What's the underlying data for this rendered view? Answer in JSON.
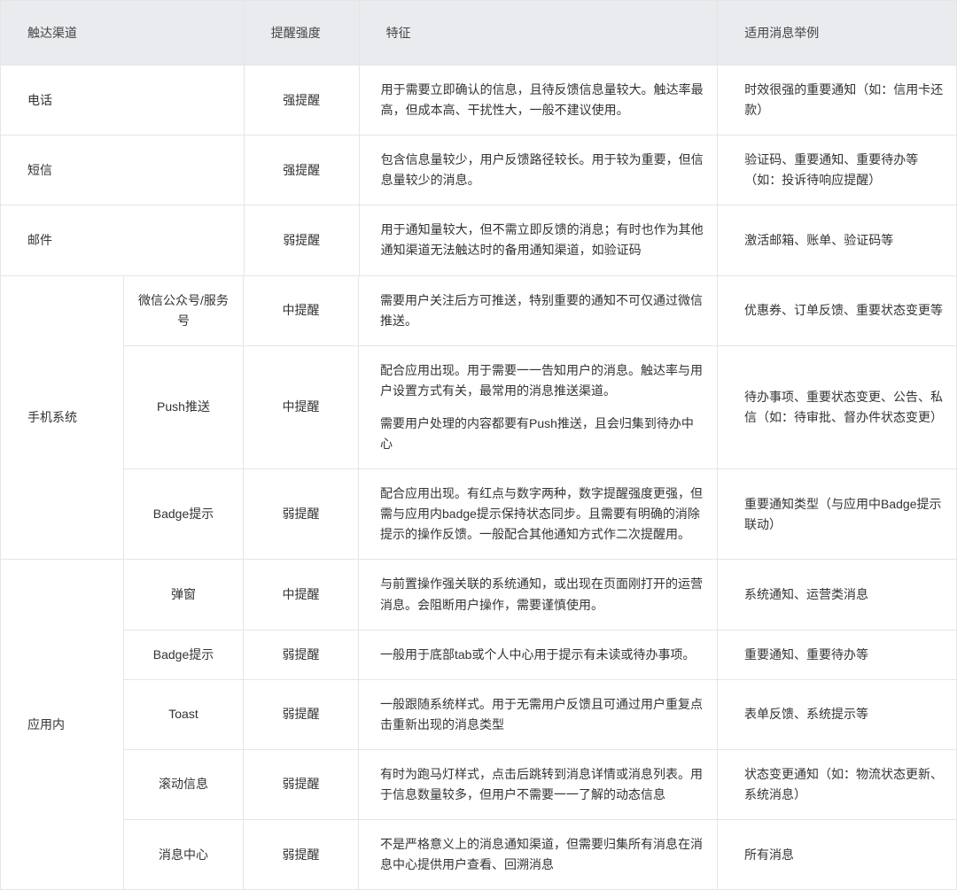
{
  "table": {
    "headers": {
      "channel": "触达渠道",
      "intensity": "提醒强度",
      "feature": "特征",
      "example": "适用消息举例"
    },
    "simpleRows": [
      {
        "channel": "电话",
        "intensity": "强提醒",
        "feature": "用于需要立即确认的信息，且待反馈信息量较大。触达率最高，但成本高、干扰性大，一般不建议使用。",
        "example": "时效很强的重要通知（如：信用卡还款）"
      },
      {
        "channel": "短信",
        "intensity": "强提醒",
        "feature": "包含信息量较少，用户反馈路径较长。用于较为重要，但信息量较少的消息。",
        "example": "验证码、重要通知、重要待办等（如：投诉待响应提醒）"
      },
      {
        "channel": "邮件",
        "intensity": "弱提醒",
        "feature": "用于通知量较大，但不需立即反馈的消息；有时也作为其他通知渠道无法触达时的备用通知渠道，如验证码",
        "example": "激活邮箱、账单、验证码等"
      }
    ],
    "groups": [
      {
        "label": "手机系统",
        "rows": [
          {
            "sub": "微信公众号/服务号",
            "intensity": "中提醒",
            "feature": "需要用户关注后方可推送，特别重要的通知不可仅通过微信推送。",
            "example": "优惠券、订单反馈、重要状态变更等"
          },
          {
            "sub": "Push推送",
            "intensity": "中提醒",
            "feature_p1": "配合应用出现。用于需要一一告知用户的消息。触达率与用户设置方式有关，最常用的消息推送渠道。",
            "feature_p2": "需要用户处理的内容都要有Push推送，且会归集到待办中心",
            "example": "待办事项、重要状态变更、公告、私信（如：待审批、督办件状态变更）"
          },
          {
            "sub": "Badge提示",
            "intensity": "弱提醒",
            "feature": "配合应用出现。有红点与数字两种，数字提醒强度更强，但需与应用内badge提示保持状态同步。且需要有明确的消除提示的操作反馈。一般配合其他通知方式作二次提醒用。",
            "example": "重要通知类型（与应用中Badge提示联动）"
          }
        ]
      },
      {
        "label": "应用内",
        "rows": [
          {
            "sub": "弹窗",
            "intensity": "中提醒",
            "feature": "与前置操作强关联的系统通知，或出现在页面刚打开的运营消息。会阻断用户操作，需要谨慎使用。",
            "example": "系统通知、运营类消息"
          },
          {
            "sub": "Badge提示",
            "intensity": "弱提醒",
            "feature": "一般用于底部tab或个人中心用于提示有未读或待办事项。",
            "example": "重要通知、重要待办等"
          },
          {
            "sub": "Toast",
            "intensity": "弱提醒",
            "feature": "一般跟随系统样式。用于无需用户反馈且可通过用户重复点击重新出现的消息类型",
            "example": "表单反馈、系统提示等"
          },
          {
            "sub": "滚动信息",
            "intensity": "弱提醒",
            "feature": "有时为跑马灯样式，点击后跳转到消息详情或消息列表。用于信息数量较多，但用户不需要一一了解的动态信息",
            "example": "状态变更通知（如：物流状态更新、系统消息）"
          },
          {
            "sub": "消息中心",
            "intensity": "弱提醒",
            "feature": "不是严格意义上的消息通知渠道，但需要归集所有消息在消息中心提供用户查看、回溯消息",
            "example": "所有消息"
          }
        ]
      }
    ]
  },
  "style": {
    "header_bg": "#eaebef",
    "border_color": "#e5e5e5",
    "text_color": "#333333",
    "font_size": 14,
    "col_widths": {
      "channel": 140,
      "channel_wide": 275,
      "sub": 135,
      "intensity": 130,
      "feature": 405,
      "example": 270
    }
  }
}
